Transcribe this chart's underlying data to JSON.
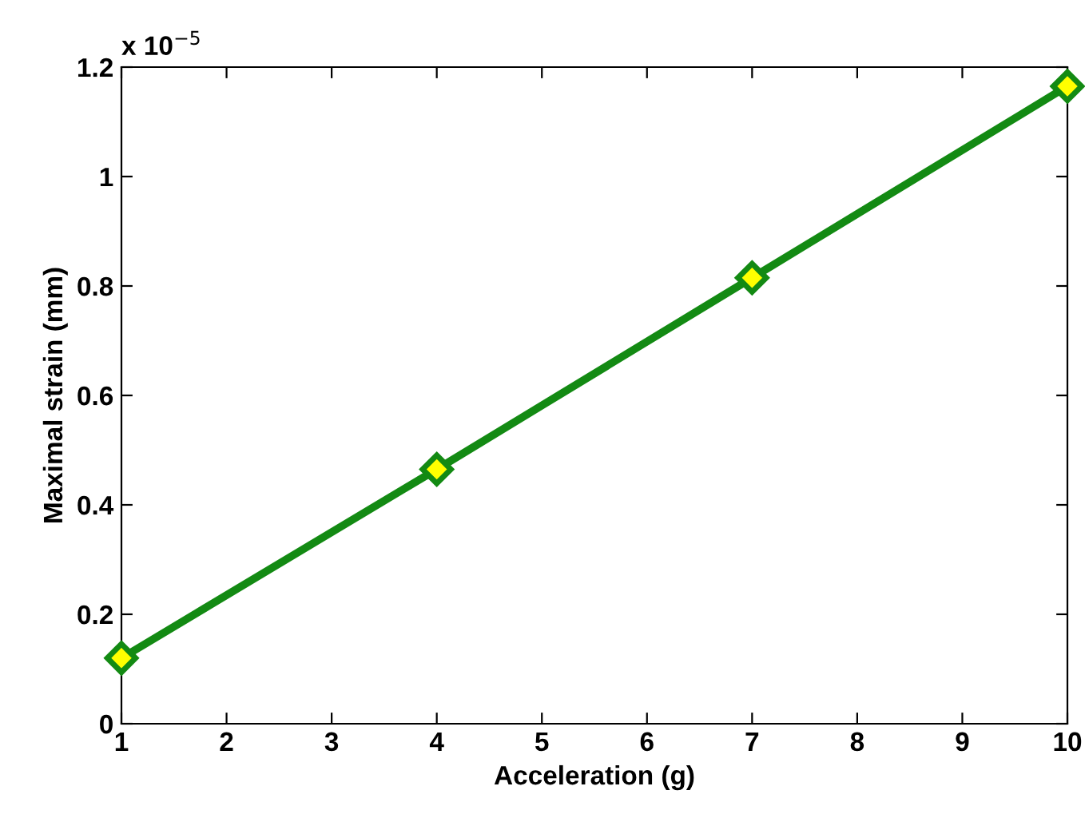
{
  "chart_data": {
    "type": "line",
    "xlabel": "Acceleration (g)",
    "ylabel": "Maximal strain (mm)",
    "x": [
      1,
      4,
      7,
      10
    ],
    "series": [
      {
        "color": "#138a13",
        "values": [
          0.12,
          0.465,
          0.815,
          1.165
        ]
      }
    ],
    "xlim": [
      1,
      10
    ],
    "xticks": [
      1,
      2,
      3,
      4,
      5,
      6,
      7,
      8,
      9,
      10
    ],
    "ylim": [
      0,
      1.2
    ],
    "yticks": [
      0,
      0.2,
      0.4,
      0.6,
      0.8,
      1,
      1.2
    ],
    "annotations": [
      "x 10$^{−5}$"
    ],
    "marker": "diamond",
    "line_style": "solid",
    "grid": false,
    "legend": false
  }
}
